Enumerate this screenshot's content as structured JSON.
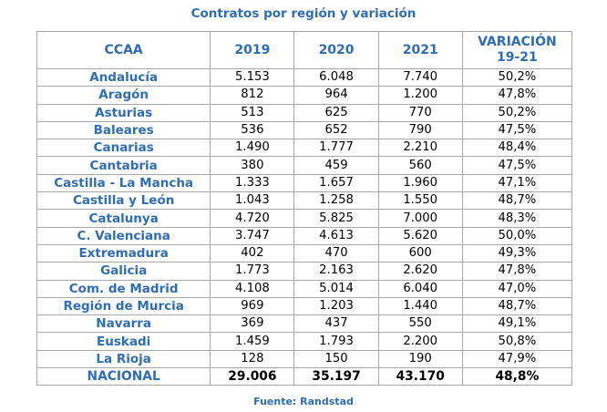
{
  "title": "Contratos por región y variación",
  "headers": {
    "ccaa": "CCAA",
    "y2019": "2019",
    "y2020": "2020",
    "y2021": "2021",
    "var_line1": "VARIACIÓN",
    "var_line2": "19-21"
  },
  "rows": [
    {
      "region": "Andalucía",
      "y2019": "5.153",
      "y2020": "6.048",
      "y2021": "7.740",
      "var": "50,2%"
    },
    {
      "region": "Aragón",
      "y2019": "812",
      "y2020": "964",
      "y2021": "1.200",
      "var": "47,8%"
    },
    {
      "region": "Asturias",
      "y2019": "513",
      "y2020": "625",
      "y2021": "770",
      "var": "50,2%"
    },
    {
      "region": "Baleares",
      "y2019": "536",
      "y2020": "652",
      "y2021": "790",
      "var": "47,5%"
    },
    {
      "region": "Canarias",
      "y2019": "1.490",
      "y2020": "1.777",
      "y2021": "2.210",
      "var": "48,4%"
    },
    {
      "region": "Cantabria",
      "y2019": "380",
      "y2020": "459",
      "y2021": "560",
      "var": "47,5%"
    },
    {
      "region": "Castilla - La Mancha",
      "y2019": "1.333",
      "y2020": "1.657",
      "y2021": "1.960",
      "var": "47,1%"
    },
    {
      "region": "Castilla y León",
      "y2019": "1.043",
      "y2020": "1.258",
      "y2021": "1.550",
      "var": "48,7%"
    },
    {
      "region": "Catalunya",
      "y2019": "4.720",
      "y2020": "5.825",
      "y2021": "7.000",
      "var": "48,3%"
    },
    {
      "region": "C. Valenciana",
      "y2019": "3.747",
      "y2020": "4.613",
      "y2021": "5.620",
      "var": "50,0%"
    },
    {
      "region": "Extremadura",
      "y2019": "402",
      "y2020": "470",
      "y2021": "600",
      "var": "49,3%"
    },
    {
      "region": "Galicia",
      "y2019": "1.773",
      "y2020": "2.163",
      "y2021": "2.620",
      "var": "47,8%"
    },
    {
      "region": "Com. de Madrid",
      "y2019": "4.108",
      "y2020": "5.014",
      "y2021": "6.040",
      "var": "47,0%"
    },
    {
      "region": "Región de Murcia",
      "y2019": "969",
      "y2020": "1.203",
      "y2021": "1.440",
      "var": "48,7%"
    },
    {
      "region": "Navarra",
      "y2019": "369",
      "y2020": "437",
      "y2021": "550",
      "var": "49,1%"
    },
    {
      "region": "Euskadi",
      "y2019": "1.459",
      "y2020": "1.793",
      "y2021": "2.200",
      "var": "50,8%"
    },
    {
      "region": "La Rioja",
      "y2019": "128",
      "y2020": "150",
      "y2021": "190",
      "var": "47,9%"
    }
  ],
  "total": {
    "region": "NACIONAL",
    "y2019": "29.006",
    "y2020": "35.197",
    "y2021": "43.170",
    "var": "48,8%"
  },
  "source": "Fuente: Randstad",
  "colors": {
    "accent": "#2f6db5",
    "border": "#a8a8a8",
    "text": "#000000"
  }
}
